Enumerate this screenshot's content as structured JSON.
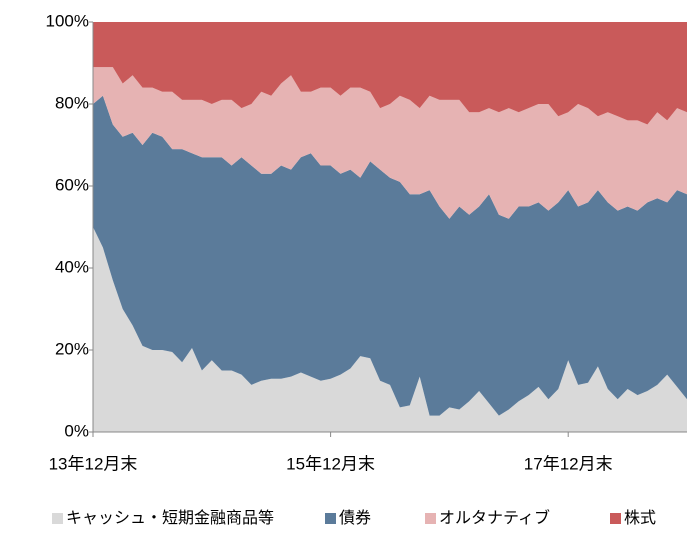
{
  "chart_data": {
    "type": "stacked_area",
    "categories": [
      "13年12月末",
      null,
      null,
      null,
      null,
      null,
      null,
      null,
      null,
      null,
      null,
      null,
      null,
      null,
      null,
      null,
      null,
      null,
      null,
      null,
      null,
      null,
      null,
      null,
      "15年12月末",
      null,
      null,
      null,
      null,
      null,
      null,
      null,
      null,
      null,
      null,
      null,
      null,
      null,
      null,
      null,
      null,
      null,
      null,
      null,
      null,
      null,
      null,
      null,
      "17年12月末",
      null,
      null,
      null,
      null,
      null,
      null,
      null,
      null,
      null,
      null,
      null,
      null
    ],
    "series": [
      {
        "name": "キャッシュ・短期金融商品等",
        "color": "#d9d9d9",
        "values": [
          50,
          45,
          37,
          30,
          26,
          21,
          20,
          20,
          19.5,
          17,
          20.5,
          15,
          17.5,
          15,
          15,
          14,
          11.5,
          12.5,
          13,
          13,
          13.5,
          14.5,
          13.5,
          12.5,
          13,
          14,
          15.5,
          18.5,
          18,
          12.5,
          11.5,
          6,
          6.5,
          13.5,
          4,
          4,
          6,
          5.5,
          7.5,
          10,
          7,
          4,
          5.5,
          7.5,
          9,
          11,
          8,
          10.5,
          17.5,
          11.5,
          12,
          16,
          10.5,
          8,
          10.5,
          9,
          10,
          11.5,
          14,
          11,
          8
        ]
      },
      {
        "name": "債券",
        "color": "#5b7b9a",
        "values": [
          30,
          37,
          38,
          42,
          47,
          49,
          53,
          52,
          49.5,
          52,
          47.5,
          52,
          49.5,
          52,
          50,
          53,
          53.5,
          50.5,
          50,
          52,
          50.5,
          52.5,
          54.5,
          52.5,
          52,
          49,
          48.5,
          43.5,
          48,
          51.5,
          50.5,
          55,
          51.5,
          44.5,
          55,
          51,
          46,
          49.5,
          45.5,
          45,
          51,
          49,
          46.5,
          47.5,
          46,
          45,
          46,
          45.5,
          41.5,
          43.5,
          44,
          43,
          45.5,
          46,
          44.5,
          45,
          46,
          45.5,
          42,
          48,
          50
        ]
      },
      {
        "name": "オルタナティブ",
        "color": "#e6b3b3",
        "values": [
          9,
          7,
          14,
          13,
          14,
          14,
          11,
          11,
          14,
          12,
          13,
          14,
          13,
          14,
          16,
          12,
          15,
          20,
          19,
          20,
          23,
          16,
          15,
          19,
          19,
          19,
          20,
          22,
          17,
          15,
          18,
          21,
          23,
          21,
          23,
          26,
          29,
          26,
          25,
          23,
          21,
          25,
          27,
          23,
          24,
          24,
          26,
          21,
          19,
          25,
          23,
          18,
          22,
          23,
          21,
          22,
          19,
          21,
          20,
          20,
          20
        ]
      },
      {
        "name": "株式",
        "color": "#c95a5a",
        "values": [
          11,
          11,
          11,
          15,
          13,
          16,
          16,
          17,
          17,
          19,
          19,
          19,
          20,
          19,
          19,
          21,
          20,
          17,
          18,
          15,
          13,
          17,
          17,
          16,
          16,
          18,
          16,
          16,
          17,
          21,
          20,
          18,
          19,
          21,
          18,
          19,
          19,
          19,
          22,
          22,
          21,
          22,
          21,
          22,
          21,
          20,
          20,
          23,
          22,
          20,
          21,
          23,
          22,
          23,
          24,
          24,
          25,
          22,
          24,
          21,
          22
        ]
      }
    ],
    "ylim": [
      0,
      100
    ],
    "yticks": [
      {
        "value": 0,
        "label": "0%"
      },
      {
        "value": 20,
        "label": "20%"
      },
      {
        "value": 40,
        "label": "40%"
      },
      {
        "value": 60,
        "label": "60%"
      },
      {
        "value": 80,
        "label": "80%"
      },
      {
        "value": 100,
        "label": "100%"
      }
    ]
  }
}
